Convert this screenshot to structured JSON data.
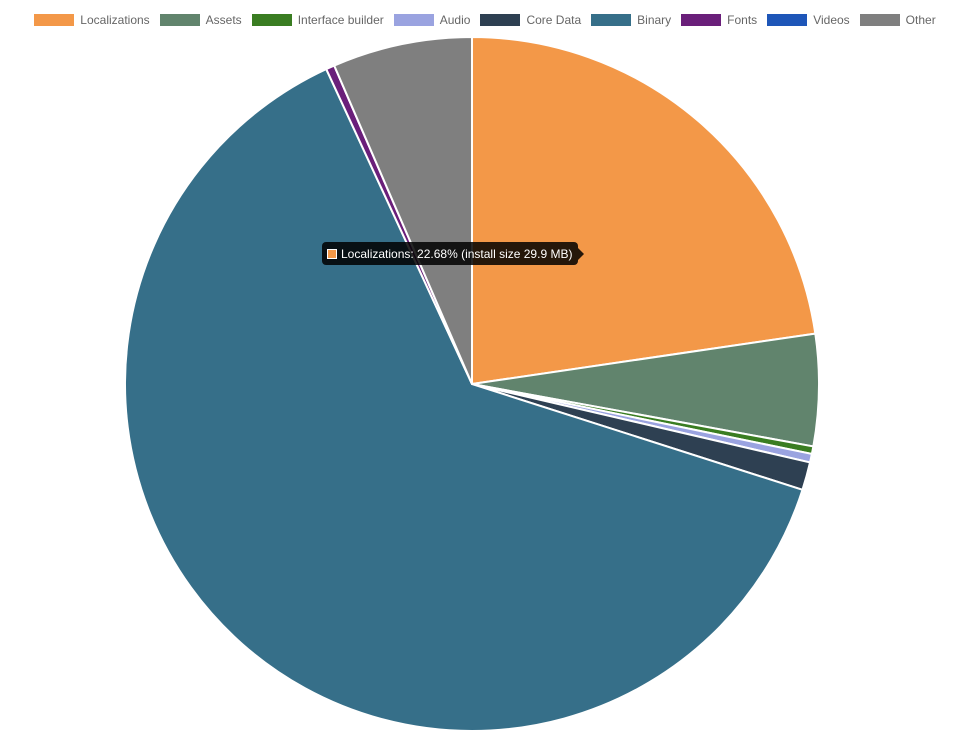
{
  "chart_data": {
    "type": "pie",
    "categories": [
      "Localizations",
      "Assets",
      "Interface builder",
      "Audio",
      "Core Data",
      "Binary",
      "Fonts",
      "Videos",
      "Other"
    ],
    "values": [
      22.68,
      5.2,
      0.35,
      0.4,
      1.3,
      63.17,
      0.4,
      0.0,
      6.5
    ],
    "colors": [
      "#f39848",
      "#61846d",
      "#3a7d22",
      "#9aa3e0",
      "#2e4052",
      "#366f89",
      "#6a1f7a",
      "#1e56b8",
      "#7f7f7f"
    ],
    "legend_placement": "top",
    "tooltip": {
      "text": "Localizations: 22.68% (install size 29.9 MB)",
      "color": "#f39848"
    }
  }
}
